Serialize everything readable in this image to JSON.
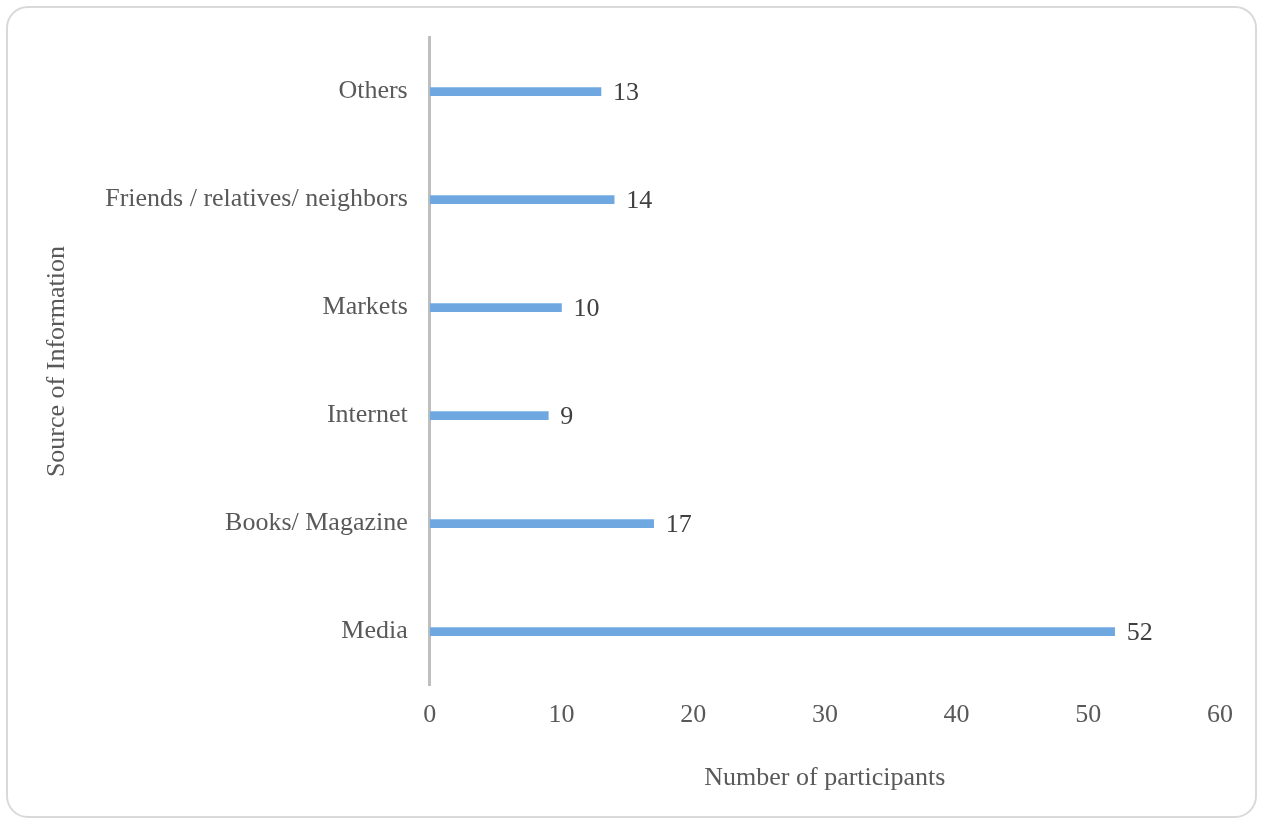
{
  "chart_data": {
    "type": "bar",
    "orientation": "horizontal",
    "xlabel": "Number of participants",
    "ylabel": "Source of Information",
    "categories": [
      "Others",
      "Friends / relatives/ neighbors",
      "Markets",
      "Internet",
      "Books/ Magazine",
      "Media"
    ],
    "values": [
      13,
      14,
      10,
      9,
      17,
      52
    ],
    "color": "#6fa8e0",
    "xlim": [
      0,
      60
    ],
    "xticks": [
      0,
      10,
      20,
      30,
      40,
      50,
      60
    ],
    "grid": false,
    "legend": false,
    "data_labels": true
  }
}
